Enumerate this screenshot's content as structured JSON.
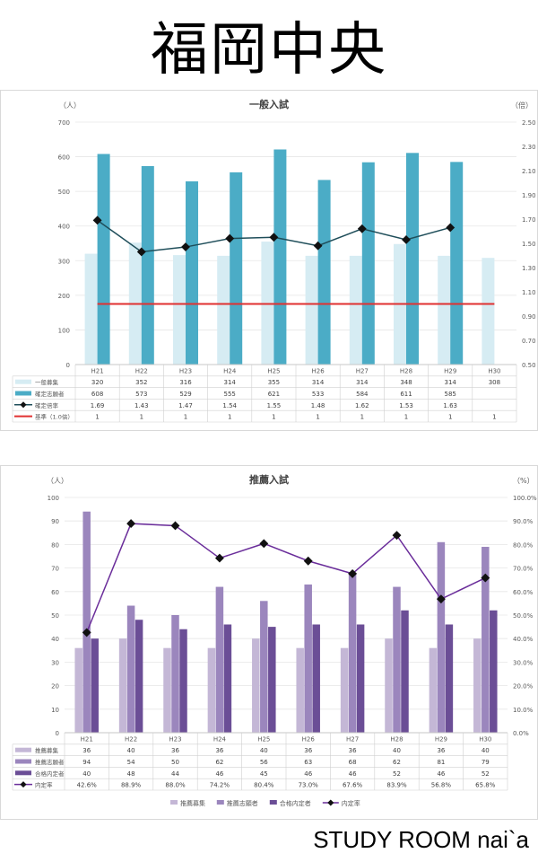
{
  "page": {
    "title": "福岡中央",
    "footer": "STUDY ROOM nai`a"
  },
  "chart_data": [
    {
      "type": "bar",
      "title": "一般入試",
      "left_unit": "（人）",
      "right_unit": "（倍）",
      "ylim": [
        0,
        700
      ],
      "yticks": [
        "0",
        "100",
        "200",
        "300",
        "400",
        "500",
        "600",
        "700"
      ],
      "y2lim": [
        0.5,
        2.5
      ],
      "y2ticks": [
        "0.50",
        "0.70",
        "0.90",
        "1.10",
        "1.30",
        "1.50",
        "1.70",
        "1.90",
        "2.10",
        "2.30",
        "2.50"
      ],
      "categories": [
        "H21",
        "H22",
        "H23",
        "H24",
        "H25",
        "H26",
        "H27",
        "H28",
        "H29",
        "H30"
      ],
      "series": [
        {
          "name": "一般募集",
          "kind": "bar",
          "axis": "left",
          "color": "#d6ecf3",
          "values": [
            320,
            352,
            316,
            314,
            355,
            314,
            314,
            348,
            314,
            308
          ],
          "labels": [
            "320",
            "352",
            "316",
            "314",
            "355",
            "314",
            "314",
            "348",
            "314",
            "308"
          ]
        },
        {
          "name": "確定志願者",
          "kind": "bar",
          "axis": "left",
          "color": "#4bacc6",
          "values": [
            608,
            573,
            529,
            555,
            621,
            533,
            584,
            611,
            585,
            null
          ],
          "labels": [
            "608",
            "573",
            "529",
            "555",
            "621",
            "533",
            "584",
            "611",
            "585",
            ""
          ]
        },
        {
          "name": "確定倍率",
          "kind": "line",
          "axis": "right",
          "color": "#1f4e5a",
          "values": [
            1.69,
            1.43,
            1.47,
            1.54,
            1.55,
            1.48,
            1.62,
            1.53,
            1.63,
            null
          ],
          "labels": [
            "1.69",
            "1.43",
            "1.47",
            "1.54",
            "1.55",
            "1.48",
            "1.62",
            "1.53",
            "1.63",
            ""
          ]
        },
        {
          "name": "基準（1.0倍）",
          "kind": "ref",
          "axis": "right",
          "color": "#e03030",
          "values": [
            1,
            1,
            1,
            1,
            1,
            1,
            1,
            1,
            1,
            1
          ],
          "labels": [
            "1",
            "1",
            "1",
            "1",
            "1",
            "1",
            "1",
            "1",
            "1",
            "1"
          ]
        }
      ]
    },
    {
      "type": "bar",
      "title": "推薦入試",
      "left_unit": "（人）",
      "right_unit": "（%）",
      "ylim": [
        0,
        100
      ],
      "yticks": [
        "0",
        "10",
        "20",
        "30",
        "40",
        "50",
        "60",
        "70",
        "80",
        "90",
        "100"
      ],
      "y2lim": [
        0,
        100
      ],
      "y2ticks": [
        "0.0%",
        "10.0%",
        "20.0%",
        "30.0%",
        "40.0%",
        "50.0%",
        "60.0%",
        "70.0%",
        "80.0%",
        "90.0%",
        "100.0%"
      ],
      "categories": [
        "H21",
        "H22",
        "H23",
        "H24",
        "H25",
        "H26",
        "H27",
        "H28",
        "H29",
        "H30"
      ],
      "series": [
        {
          "name": "推薦募集",
          "kind": "bar",
          "axis": "left",
          "color": "#c4b7d6",
          "values": [
            36,
            40,
            36,
            36,
            40,
            36,
            36,
            40,
            36,
            40
          ],
          "labels": [
            "36",
            "40",
            "36",
            "36",
            "40",
            "36",
            "36",
            "40",
            "36",
            "40"
          ]
        },
        {
          "name": "推薦志願者",
          "kind": "bar",
          "axis": "left",
          "color": "#9b86bd",
          "values": [
            94,
            54,
            50,
            62,
            56,
            63,
            68,
            62,
            81,
            79
          ],
          "labels": [
            "94",
            "54",
            "50",
            "62",
            "56",
            "63",
            "68",
            "62",
            "81",
            "79"
          ]
        },
        {
          "name": "合格内定者",
          "kind": "bar",
          "axis": "left",
          "color": "#6b4e96",
          "values": [
            40,
            48,
            44,
            46,
            45,
            46,
            46,
            52,
            46,
            52
          ],
          "labels": [
            "40",
            "48",
            "44",
            "46",
            "45",
            "46",
            "46",
            "52",
            "46",
            "52"
          ]
        },
        {
          "name": "内定率",
          "kind": "line",
          "axis": "right",
          "color": "#6a2d9a",
          "values": [
            42.6,
            88.9,
            88.0,
            74.2,
            80.4,
            73.0,
            67.6,
            83.9,
            56.8,
            65.8
          ],
          "labels": [
            "42.6%",
            "88.9%",
            "88.0%",
            "74.2%",
            "80.4%",
            "73.0%",
            "67.6%",
            "83.9%",
            "56.8%",
            "65.8%"
          ]
        }
      ],
      "legend": [
        "推薦募集",
        "推薦志願者",
        "合格内定者",
        "内定率"
      ],
      "legend_position": "bottom"
    }
  ]
}
